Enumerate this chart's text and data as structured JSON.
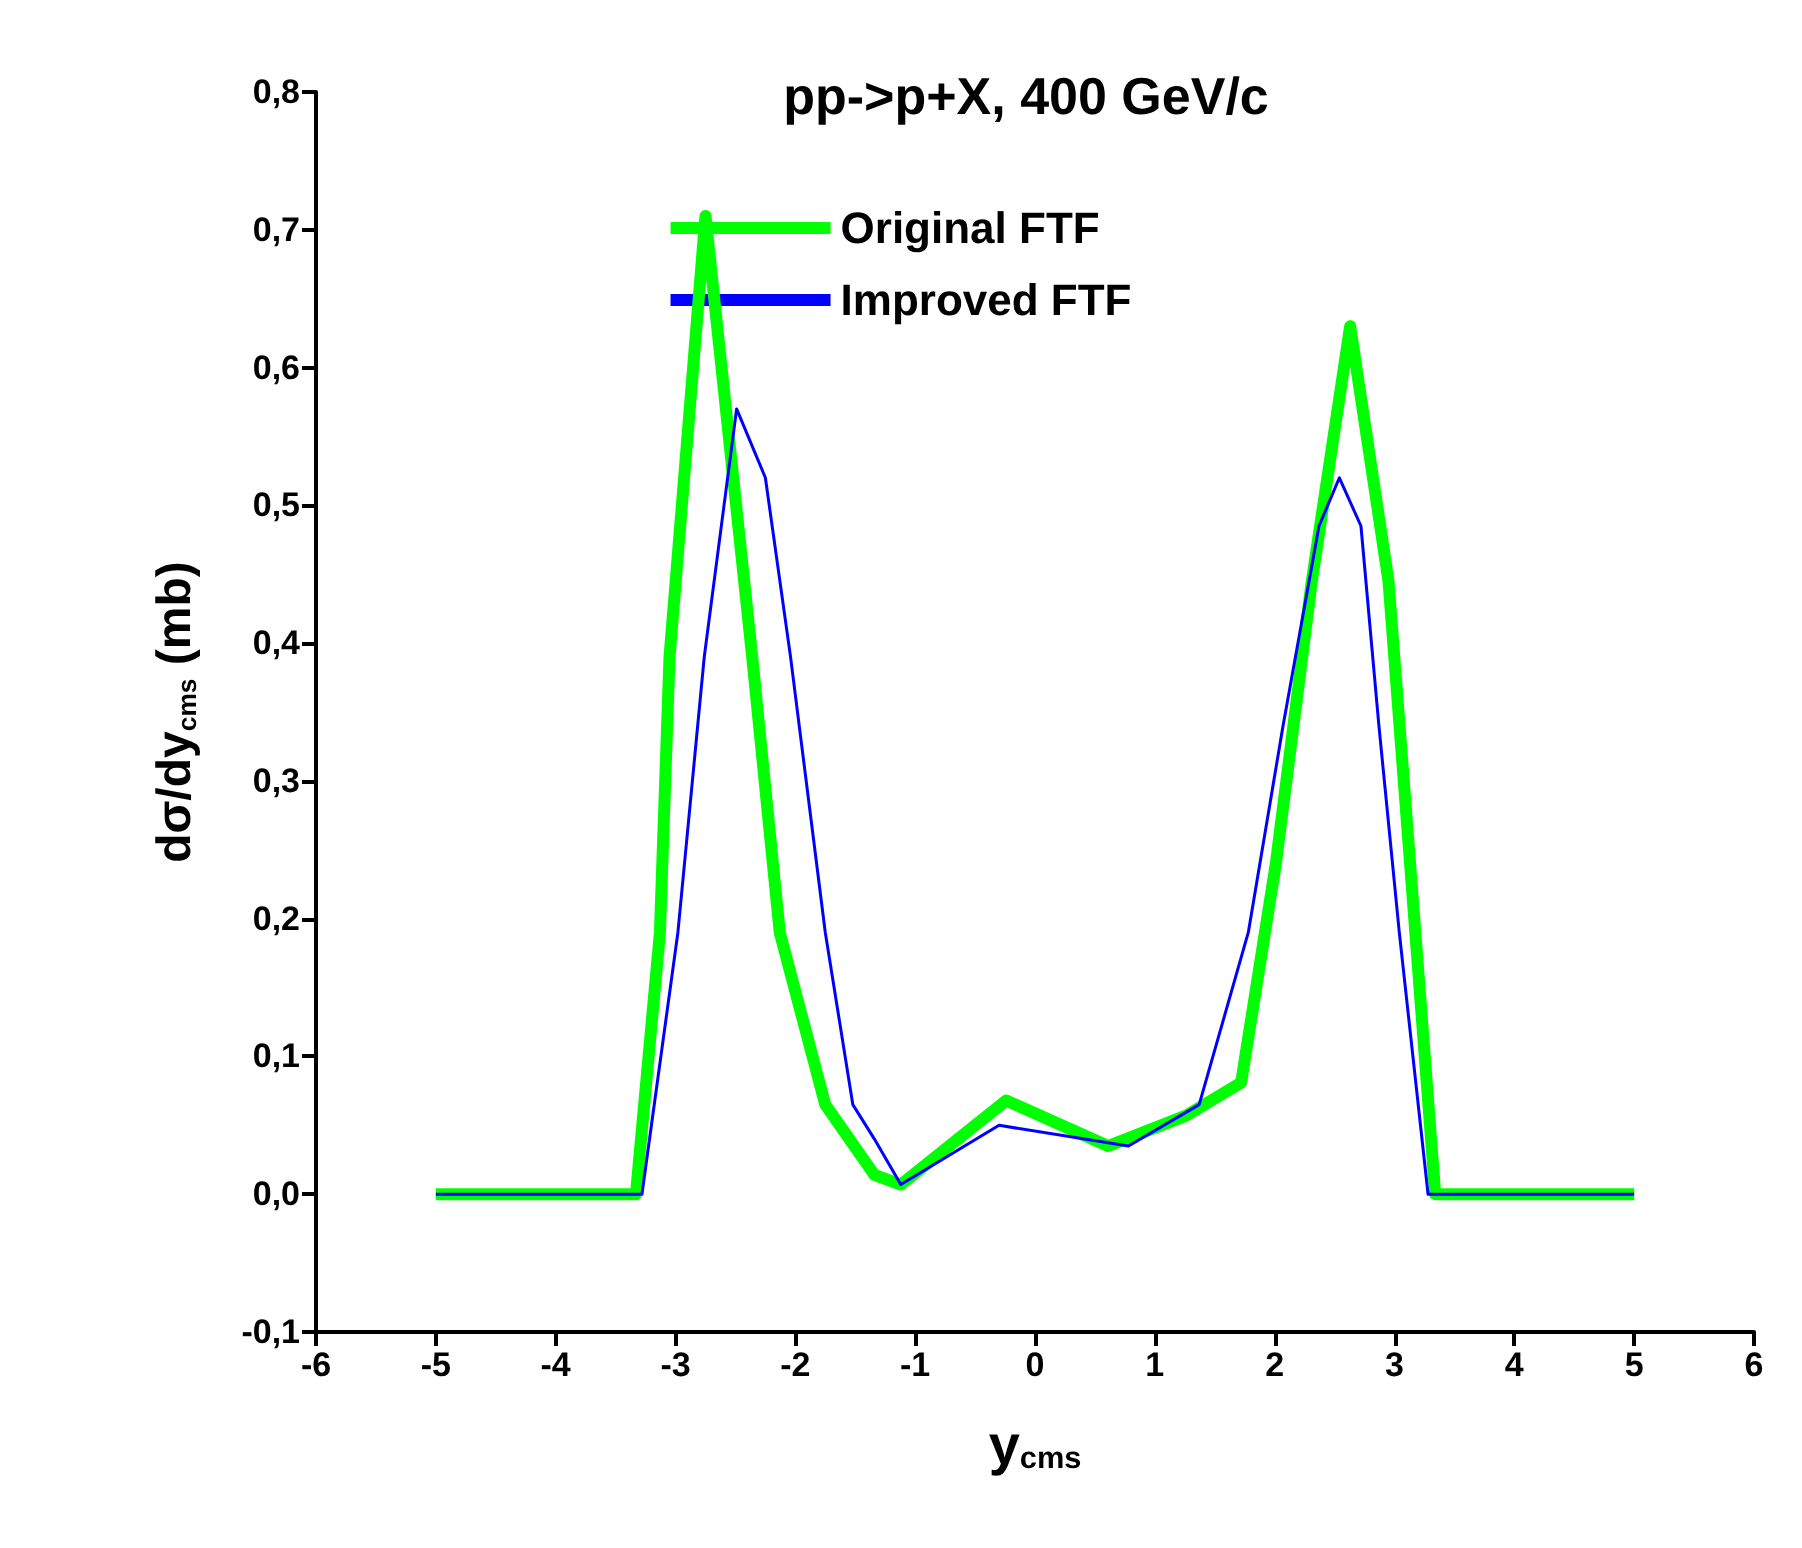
{
  "chart_data": {
    "type": "line",
    "title": "pp->p+X, 400 GeV/c",
    "xlabel": "y$_{cms}$",
    "ylabel": "dσ/dy$_{cms}$ (mb)",
    "xlim": [
      -6,
      6
    ],
    "xticks": [
      -6,
      -5,
      -4,
      -3,
      -2,
      -1,
      0,
      1,
      2,
      3,
      4,
      5,
      6
    ],
    "ylim": [
      -0.1,
      0.8
    ],
    "yticks": [
      {
        "value": -0.1,
        "label": "-0,1"
      },
      {
        "value": 0,
        "label": "0,0"
      },
      {
        "value": 0.1,
        "label": "0,1"
      },
      {
        "value": 0.2,
        "label": "0,2"
      },
      {
        "value": 0.3,
        "label": "0,3"
      },
      {
        "value": 0.4,
        "label": "0,4"
      },
      {
        "value": 0.5,
        "label": "0,5"
      },
      {
        "value": 0.6,
        "label": "0,6"
      },
      {
        "value": 0.7,
        "label": "0,7"
      },
      {
        "value": 0.8,
        "label": "0,8"
      }
    ],
    "grid": false,
    "legend": "top",
    "marker": "none",
    "series": [
      {
        "name": "Original FTF",
        "color": "#00ff00",
        "x": [
          -5,
          -3.33,
          -3.13,
          -3.05,
          -2.75,
          -2.36,
          -2.13,
          -1.75,
          -1.34,
          -1.12,
          -0.24,
          0.61,
          1.26,
          1.72,
          2.01,
          2.31,
          2.63,
          2.95,
          3.13,
          3.34,
          5
        ],
        "values": [
          0,
          0,
          0.19,
          0.39,
          0.71,
          0.39,
          0.19,
          0.065,
          0.014,
          0.007,
          0.068,
          0.035,
          0.057,
          0.081,
          0.24,
          0.445,
          0.63,
          0.445,
          0.24,
          0,
          0
        ]
      },
      {
        "name": "Improved FTF",
        "color": "#0000ff",
        "x": [
          -5,
          -3.28,
          -2.98,
          -2.76,
          -2.49,
          -2.25,
          -2.04,
          -1.75,
          -1.52,
          -1.34,
          -1.12,
          -0.3,
          0.78,
          1.37,
          1.78,
          2.07,
          2.37,
          2.54,
          2.72,
          2.87,
          3.04,
          3.28,
          5
        ],
        "values": [
          0,
          0,
          0.19,
          0.39,
          0.57,
          0.52,
          0.39,
          0.19,
          0.065,
          0.04,
          0.007,
          0.05,
          0.035,
          0.065,
          0.19,
          0.34,
          0.485,
          0.52,
          0.485,
          0.34,
          0.19,
          0,
          0
        ]
      }
    ]
  }
}
